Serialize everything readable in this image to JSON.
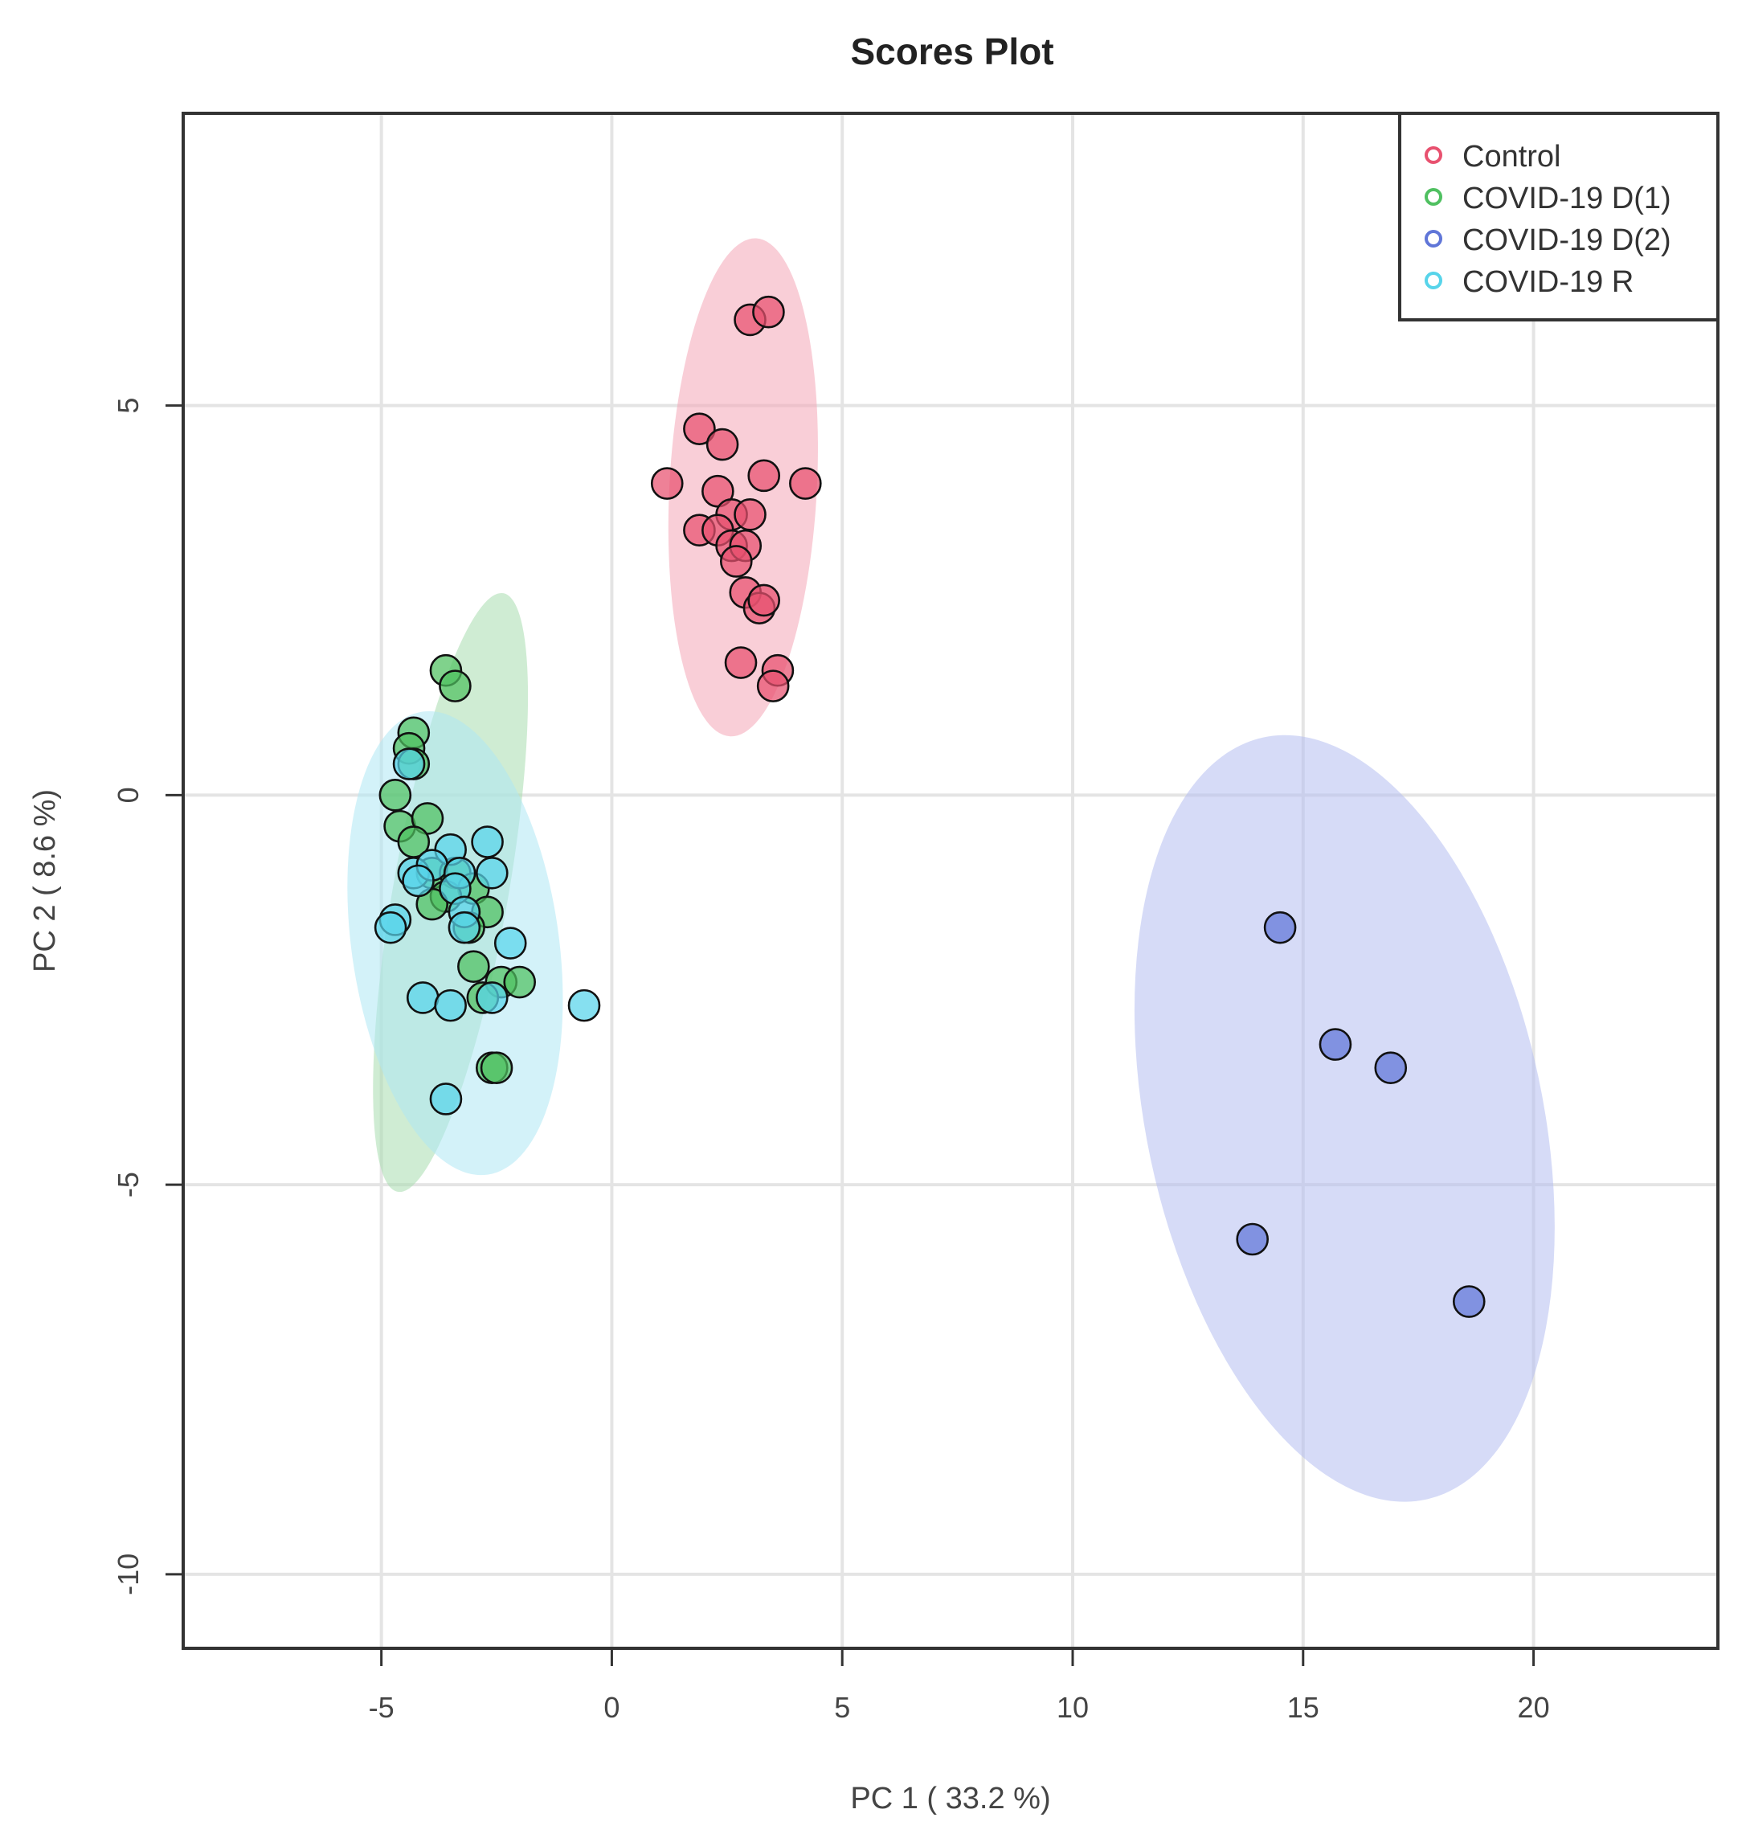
{
  "chart_data": {
    "type": "scatter",
    "title": "Scores Plot",
    "xlabel": "PC 1 ( 33.2 %)",
    "ylabel": "PC 2 ( 8.6 %)",
    "xlim": [
      -9.3,
      24.0
    ],
    "ylim": [
      -10.95,
      8.75
    ],
    "xticks": [
      -5,
      0,
      5,
      10,
      15,
      20
    ],
    "yticks": [
      5,
      0,
      -5,
      -10
    ],
    "xtick_labels": [
      "-5",
      "0",
      "5",
      "10",
      "15",
      "20"
    ],
    "ytick_labels": [
      "5",
      "0",
      "-5",
      "-10"
    ],
    "grid": true,
    "legend_position": "top-right",
    "series": [
      {
        "name": "Control",
        "color": "#e8516f",
        "ellipse": {
          "cx": 2.85,
          "cy": 3.95,
          "rx": 1.6,
          "ry": 3.2,
          "angle_deg": 3,
          "fill": "#f4a6b6"
        },
        "points": [
          [
            3.0,
            6.1
          ],
          [
            3.4,
            6.2
          ],
          [
            1.9,
            4.7
          ],
          [
            2.4,
            4.5
          ],
          [
            1.2,
            4.0
          ],
          [
            2.3,
            3.9
          ],
          [
            3.3,
            4.1
          ],
          [
            4.2,
            4.0
          ],
          [
            2.6,
            3.6
          ],
          [
            3.0,
            3.6
          ],
          [
            1.9,
            3.4
          ],
          [
            2.3,
            3.4
          ],
          [
            2.6,
            3.2
          ],
          [
            2.9,
            3.2
          ],
          [
            2.7,
            3.0
          ],
          [
            2.9,
            2.6
          ],
          [
            3.2,
            2.4
          ],
          [
            3.3,
            2.5
          ],
          [
            2.8,
            1.7
          ],
          [
            3.6,
            1.6
          ],
          [
            3.5,
            1.4
          ]
        ]
      },
      {
        "name": "COVID-19 D(1)",
        "color": "#4fc060",
        "ellipse": {
          "cx": -3.5,
          "cy": -1.25,
          "rx": 1.25,
          "ry": 3.9,
          "angle_deg": 10,
          "fill": "#a7dcae"
        },
        "points": [
          [
            -3.6,
            1.6
          ],
          [
            -3.4,
            1.4
          ],
          [
            -4.3,
            0.8
          ],
          [
            -4.4,
            0.6
          ],
          [
            -4.3,
            0.4
          ],
          [
            -4.7,
            0.0
          ],
          [
            -4.6,
            -0.4
          ],
          [
            -4.0,
            -0.3
          ],
          [
            -4.3,
            -0.6
          ],
          [
            -3.9,
            -1.0
          ],
          [
            -3.4,
            -1.0
          ],
          [
            -3.0,
            -1.2
          ],
          [
            -3.6,
            -1.3
          ],
          [
            -3.9,
            -1.4
          ],
          [
            -2.7,
            -1.5
          ],
          [
            -3.1,
            -1.7
          ],
          [
            -3.0,
            -2.2
          ],
          [
            -2.4,
            -2.4
          ],
          [
            -2.0,
            -2.4
          ],
          [
            -2.8,
            -2.6
          ],
          [
            -2.6,
            -3.5
          ],
          [
            -2.5,
            -3.5
          ]
        ]
      },
      {
        "name": "COVID-19 D(2)",
        "color": "#6076d8",
        "ellipse": {
          "cx": 15.9,
          "cy": -4.15,
          "rx": 4.3,
          "ry": 5.0,
          "angle_deg": -12,
          "fill": "#b4bdf0"
        },
        "points": [
          [
            14.5,
            -1.7
          ],
          [
            15.7,
            -3.2
          ],
          [
            16.9,
            -3.5
          ],
          [
            13.9,
            -5.7
          ],
          [
            18.6,
            -6.5
          ]
        ]
      },
      {
        "name": "COVID-19 R",
        "color": "#57d4ea",
        "ellipse": {
          "cx": -3.4,
          "cy": -1.9,
          "rx": 2.25,
          "ry": 3.0,
          "angle_deg": -8,
          "fill": "#aee8f4"
        },
        "points": [
          [
            -4.4,
            0.4
          ],
          [
            -2.7,
            -0.6
          ],
          [
            -3.5,
            -0.7
          ],
          [
            -4.3,
            -1.0
          ],
          [
            -3.9,
            -0.9
          ],
          [
            -3.3,
            -1.0
          ],
          [
            -2.6,
            -1.0
          ],
          [
            -4.2,
            -1.1
          ],
          [
            -3.4,
            -1.2
          ],
          [
            -3.2,
            -1.5
          ],
          [
            -4.7,
            -1.6
          ],
          [
            -4.8,
            -1.7
          ],
          [
            -3.2,
            -1.7
          ],
          [
            -2.2,
            -1.9
          ],
          [
            -4.1,
            -2.6
          ],
          [
            -3.5,
            -2.7
          ],
          [
            -2.6,
            -2.6
          ],
          [
            -0.6,
            -2.7
          ],
          [
            -3.6,
            -3.9
          ]
        ]
      }
    ]
  }
}
